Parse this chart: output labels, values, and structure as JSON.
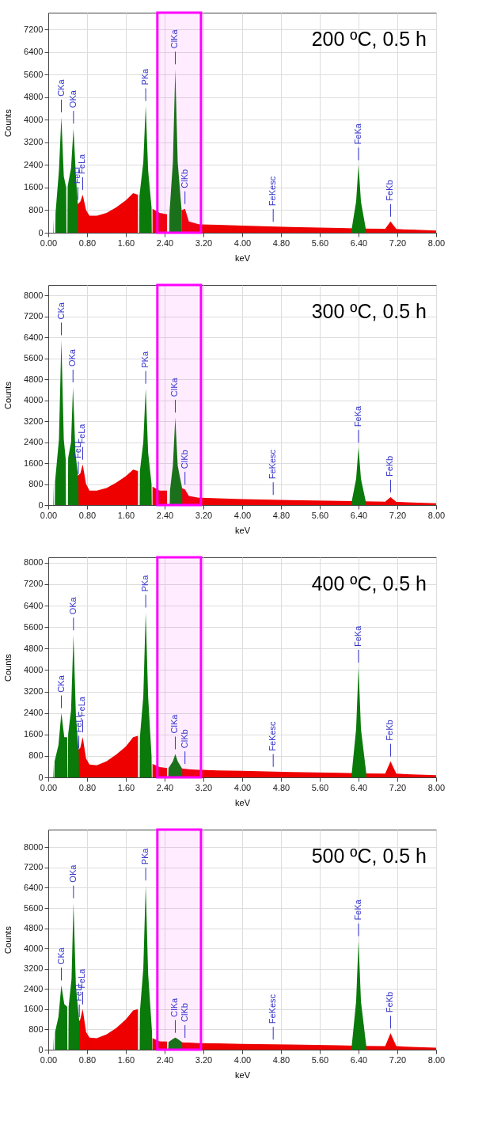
{
  "chart_data": [
    {
      "type": "area",
      "title": "200 ºC, 0.5 h",
      "xlabel": "keV",
      "ylabel": "Counts",
      "grid": true,
      "xlim": [
        0,
        8
      ],
      "xticks": [
        {
          "value": 0,
          "label": "0.00"
        },
        {
          "value": 0.8,
          "label": "0.80"
        },
        {
          "value": 1.6,
          "label": "1.60"
        },
        {
          "value": 2.4,
          "label": "2.40"
        },
        {
          "value": 3.2,
          "label": "3.20"
        },
        {
          "value": 4,
          "label": "4.00"
        },
        {
          "value": 4.8,
          "label": "4.80"
        },
        {
          "value": 5.6,
          "label": "5.60"
        },
        {
          "value": 6.4,
          "label": "6.40"
        },
        {
          "value": 7.2,
          "label": "7.20"
        },
        {
          "value": 8,
          "label": "8.00"
        }
      ],
      "ylim": [
        0,
        7800
      ],
      "yticks": [
        0,
        800,
        1600,
        2400,
        3200,
        4000,
        4800,
        5600,
        6400,
        7200
      ],
      "series": [
        {
          "color": "#ee0000",
          "x": [
            0.1,
            0.11,
            0.2,
            0.3,
            0.385,
            0.45,
            0.6,
            0.66,
            0.71,
            0.78,
            0.85,
            1.0,
            1.2,
            1.4,
            1.6,
            1.75,
            1.85,
            2.0,
            2.15,
            2.3,
            2.45,
            2.55,
            2.75,
            2.82,
            2.9,
            3.1,
            3.5,
            4.0,
            5.0,
            6.0,
            6.5,
            6.95,
            7.06,
            7.18,
            7.5,
            8.0
          ],
          "values": [
            0,
            500,
            null,
            null,
            null,
            null,
            1000,
            1100,
            1350,
            800,
            600,
            600,
            700,
            900,
            1150,
            1400,
            1350,
            null,
            850,
            700,
            650,
            null,
            800,
            850,
            400,
            300,
            280,
            250,
            200,
            170,
            150,
            140,
            400,
            130,
            110,
            80
          ]
        },
        {
          "color": "#0a7a0a",
          "x": [
            0.145,
            0.15,
            0.22,
            0.27,
            0.32,
            0.37,
            0.375,
            0.395,
            0.4,
            0.47,
            0.52,
            0.57,
            0.61,
            0.615,
            1.875,
            1.88,
            1.96,
            2.01,
            2.06,
            2.13,
            2.135,
            2.495,
            2.5,
            2.57,
            2.62,
            2.67,
            2.75,
            2.755,
            6.255,
            6.26,
            6.35,
            6.4,
            6.45,
            6.55,
            6.555
          ],
          "values": [
            0,
            700,
            2200,
            4100,
            2000,
            1600,
            0,
            0,
            1650,
            2300,
            3700,
            2000,
            1000,
            0,
            0,
            1300,
            2500,
            4500,
            2200,
            900,
            0,
            0,
            700,
            2500,
            5800,
            2500,
            800,
            0,
            0,
            150,
            1100,
            2400,
            1100,
            130,
            0
          ]
        }
      ],
      "bands": [
        {
          "axis": "x",
          "from": 2.25,
          "to": 3.15,
          "color": "#ff00ff"
        }
      ],
      "annotations": [
        {
          "text": "CKa",
          "x": 0.27,
          "y": 4100
        },
        {
          "text": "OKa",
          "x": 0.52,
          "y": 3700
        },
        {
          "text": "FeLl",
          "x": 0.61,
          "y": 1000
        },
        {
          "text": "FeLa",
          "x": 0.71,
          "y": 1350
        },
        {
          "text": "PKa",
          "x": 2.01,
          "y": 4500
        },
        {
          "text": "ClKa",
          "x": 2.62,
          "y": 5800
        },
        {
          "text": "ClKb",
          "x": 2.82,
          "y": 850
        },
        {
          "text": "FeKesc",
          "x": 4.64,
          "y": 220
        },
        {
          "text": "FeKa",
          "x": 6.4,
          "y": 2400
        },
        {
          "text": "FeKb",
          "x": 7.06,
          "y": 400
        }
      ]
    },
    {
      "type": "area",
      "title": "300 ºC, 0.5 h",
      "xlabel": "keV",
      "ylabel": "Counts",
      "grid": true,
      "xlim": [
        0,
        8
      ],
      "xticks": [
        {
          "value": 0,
          "label": "0.00"
        },
        {
          "value": 0.8,
          "label": "0.80"
        },
        {
          "value": 1.6,
          "label": "1.60"
        },
        {
          "value": 2.4,
          "label": "2.40"
        },
        {
          "value": 3.2,
          "label": "3.20"
        },
        {
          "value": 4,
          "label": "4.00"
        },
        {
          "value": 4.8,
          "label": "4.80"
        },
        {
          "value": 5.6,
          "label": "5.60"
        },
        {
          "value": 6.4,
          "label": "6.40"
        },
        {
          "value": 7.2,
          "label": "7.20"
        },
        {
          "value": 8,
          "label": "8.00"
        }
      ],
      "ylim": [
        0,
        8400
      ],
      "yticks": [
        0,
        800,
        1600,
        2400,
        3200,
        4000,
        4800,
        5600,
        6400,
        7200,
        8000
      ],
      "series": [
        {
          "color": "#ee0000",
          "x": [
            0.1,
            0.11,
            0.2,
            0.3,
            0.385,
            0.45,
            0.6,
            0.66,
            0.71,
            0.78,
            0.85,
            1.0,
            1.2,
            1.4,
            1.6,
            1.75,
            1.85,
            2.0,
            2.15,
            2.3,
            2.45,
            2.55,
            2.75,
            2.82,
            2.9,
            3.1,
            3.5,
            4.0,
            5.0,
            6.0,
            6.5,
            6.95,
            7.06,
            7.18,
            7.5,
            8.0
          ],
          "values": [
            0,
            800,
            null,
            null,
            null,
            null,
            1100,
            1200,
            1550,
            800,
            550,
            550,
            650,
            850,
            1100,
            1350,
            1300,
            null,
            700,
            550,
            550,
            null,
            650,
            600,
            350,
            280,
            260,
            230,
            190,
            160,
            140,
            130,
            300,
            120,
            100,
            70
          ]
        },
        {
          "color": "#0a7a0a",
          "x": [
            0.135,
            0.14,
            0.22,
            0.27,
            0.32,
            0.36,
            0.365,
            0.405,
            0.41,
            0.47,
            0.51,
            0.56,
            0.62,
            0.625,
            1.885,
            1.89,
            1.96,
            2.01,
            2.06,
            2.13,
            2.135,
            2.505,
            2.51,
            2.57,
            2.62,
            2.67,
            2.76,
            2.765,
            6.255,
            6.26,
            6.35,
            6.4,
            6.45,
            6.55,
            6.555
          ],
          "values": [
            0,
            900,
            2500,
            6300,
            2500,
            1750,
            0,
            0,
            1800,
            2400,
            4500,
            2000,
            1000,
            0,
            0,
            1300,
            2400,
            4450,
            2000,
            800,
            0,
            0,
            550,
            1500,
            3350,
            1500,
            650,
            0,
            0,
            140,
            1000,
            2200,
            1000,
            130,
            0
          ]
        }
      ],
      "bands": [
        {
          "axis": "x",
          "from": 2.25,
          "to": 3.15,
          "color": "#ff00ff"
        }
      ],
      "annotations": [
        {
          "text": "CKa",
          "x": 0.27,
          "y": 6300
        },
        {
          "text": "OKa",
          "x": 0.51,
          "y": 4500
        },
        {
          "text": "FeLl",
          "x": 0.62,
          "y": 1000
        },
        {
          "text": "FeLa",
          "x": 0.71,
          "y": 1550
        },
        {
          "text": "PKa",
          "x": 2.01,
          "y": 4450
        },
        {
          "text": "ClKa",
          "x": 2.62,
          "y": 3350
        },
        {
          "text": "ClKb",
          "x": 2.82,
          "y": 600
        },
        {
          "text": "FeKesc",
          "x": 4.64,
          "y": 204
        },
        {
          "text": "FeKa",
          "x": 6.4,
          "y": 2200
        },
        {
          "text": "FeKb",
          "x": 7.06,
          "y": 300
        }
      ]
    },
    {
      "type": "area",
      "title": "400 ºC, 0.5 h",
      "xlabel": "keV",
      "ylabel": "Counts",
      "grid": true,
      "xlim": [
        0,
        8
      ],
      "xticks": [
        {
          "value": 0,
          "label": "0.00"
        },
        {
          "value": 0.8,
          "label": "0.80"
        },
        {
          "value": 1.6,
          "label": "1.60"
        },
        {
          "value": 2.4,
          "label": "2.40"
        },
        {
          "value": 3.2,
          "label": "3.20"
        },
        {
          "value": 4,
          "label": "4.00"
        },
        {
          "value": 4.8,
          "label": "4.80"
        },
        {
          "value": 5.6,
          "label": "5.60"
        },
        {
          "value": 6.4,
          "label": "6.40"
        },
        {
          "value": 7.2,
          "label": "7.20"
        },
        {
          "value": 8,
          "label": "8.00"
        }
      ],
      "ylim": [
        0,
        8200
      ],
      "yticks": [
        0,
        800,
        1600,
        2400,
        3200,
        4000,
        4800,
        5600,
        6400,
        7200,
        8000
      ],
      "series": [
        {
          "color": "#ee0000",
          "x": [
            0.1,
            0.11,
            0.2,
            0.3,
            0.4,
            0.45,
            0.6,
            0.66,
            0.71,
            0.78,
            0.85,
            1.0,
            1.2,
            1.4,
            1.6,
            1.75,
            1.85,
            2.0,
            2.15,
            2.3,
            2.45,
            2.55,
            2.75,
            2.82,
            2.9,
            3.1,
            3.5,
            4.0,
            5.0,
            6.0,
            6.5,
            6.95,
            7.06,
            7.18,
            7.5,
            8.0
          ],
          "values": [
            0,
            500,
            null,
            null,
            null,
            null,
            1000,
            1100,
            1500,
            700,
            480,
            450,
            600,
            850,
            1150,
            1500,
            1550,
            null,
            500,
            380,
            350,
            null,
            330,
            320,
            300,
            280,
            260,
            240,
            200,
            170,
            150,
            140,
            600,
            140,
            110,
            80
          ]
        },
        {
          "color": "#0a7a0a",
          "x": [
            0.125,
            0.13,
            0.21,
            0.27,
            0.33,
            0.39,
            0.395,
            0.405,
            0.41,
            0.47,
            0.52,
            0.57,
            0.63,
            0.635,
            1.885,
            1.89,
            1.96,
            2.01,
            2.06,
            2.13,
            2.135,
            2.475,
            2.48,
            2.57,
            2.62,
            2.67,
            2.76,
            2.765,
            6.255,
            6.26,
            6.35,
            6.4,
            6.45,
            6.56,
            6.565
          ],
          "values": [
            0,
            600,
            1200,
            2400,
            1500,
            1500,
            0,
            0,
            1600,
            2500,
            5300,
            2300,
            900,
            0,
            0,
            1500,
            3000,
            6150,
            3000,
            800,
            0,
            0,
            350,
            600,
            870,
            600,
            330,
            0,
            0,
            150,
            1800,
            4100,
            1800,
            140,
            0
          ]
        }
      ],
      "bands": [
        {
          "axis": "x",
          "from": 2.25,
          "to": 3.15,
          "color": "#ff00ff"
        }
      ],
      "annotations": [
        {
          "text": "CKa",
          "x": 0.27,
          "y": 2400
        },
        {
          "text": "OKa",
          "x": 0.52,
          "y": 5300
        },
        {
          "text": "FeLl",
          "x": 0.63,
          "y": 900
        },
        {
          "text": "FeLa",
          "x": 0.71,
          "y": 1500
        },
        {
          "text": "PKa",
          "x": 2.01,
          "y": 6150
        },
        {
          "text": "ClKa",
          "x": 2.62,
          "y": 870
        },
        {
          "text": "ClKb",
          "x": 2.82,
          "y": 320
        },
        {
          "text": "FeKesc",
          "x": 4.64,
          "y": 214
        },
        {
          "text": "FeKa",
          "x": 6.4,
          "y": 4100
        },
        {
          "text": "FeKb",
          "x": 7.06,
          "y": 600
        }
      ]
    },
    {
      "type": "area",
      "title": "500 ºC, 0.5 h",
      "xlabel": "keV",
      "ylabel": "Counts",
      "grid": true,
      "xlim": [
        0,
        8
      ],
      "xticks": [
        {
          "value": 0,
          "label": "0.00"
        },
        {
          "value": 0.8,
          "label": "0.80"
        },
        {
          "value": 1.6,
          "label": "1.60"
        },
        {
          "value": 2.4,
          "label": "2.40"
        },
        {
          "value": 3.2,
          "label": "3.20"
        },
        {
          "value": 4,
          "label": "4.00"
        },
        {
          "value": 4.8,
          "label": "4.80"
        },
        {
          "value": 5.6,
          "label": "5.60"
        },
        {
          "value": 6.4,
          "label": "6.40"
        },
        {
          "value": 7.2,
          "label": "7.20"
        },
        {
          "value": 8,
          "label": "8.00"
        }
      ],
      "ylim": [
        0,
        8700
      ],
      "yticks": [
        0,
        800,
        1600,
        2400,
        3200,
        4000,
        4800,
        5600,
        6400,
        7200,
        8000
      ],
      "series": [
        {
          "color": "#ee0000",
          "x": [
            0.1,
            0.11,
            0.2,
            0.3,
            0.405,
            0.45,
            0.6,
            0.66,
            0.71,
            0.78,
            0.85,
            1.0,
            1.2,
            1.4,
            1.6,
            1.75,
            1.85,
            2.0,
            2.15,
            2.3,
            2.45,
            2.55,
            2.75,
            2.82,
            2.9,
            3.1,
            3.5,
            4.0,
            5.0,
            6.0,
            6.5,
            6.95,
            7.06,
            7.18,
            7.5,
            8.0
          ],
          "values": [
            0,
            500,
            null,
            null,
            null,
            null,
            1000,
            1200,
            1600,
            700,
            480,
            450,
            600,
            850,
            1200,
            1550,
            1600,
            null,
            450,
            330,
            320,
            null,
            290,
            280,
            280,
            260,
            250,
            230,
            200,
            170,
            150,
            140,
            650,
            140,
            110,
            80
          ]
        },
        {
          "color": "#0a7a0a",
          "x": [
            0.135,
            0.14,
            0.21,
            0.27,
            0.33,
            0.39,
            0.395,
            0.415,
            0.42,
            0.48,
            0.52,
            0.57,
            0.64,
            0.645,
            1.885,
            1.89,
            1.96,
            2.01,
            2.06,
            2.14,
            2.145,
            2.475,
            2.48,
            2.57,
            2.62,
            2.67,
            2.76,
            2.765,
            6.255,
            6.26,
            6.35,
            6.4,
            6.45,
            6.56,
            6.565
          ],
          "values": [
            0,
            700,
            1300,
            2550,
            1800,
            1700,
            0,
            0,
            1700,
            2800,
            5800,
            2500,
            1100,
            0,
            0,
            1500,
            3200,
            6500,
            3000,
            700,
            0,
            0,
            300,
            420,
            480,
            420,
            300,
            0,
            0,
            150,
            1900,
            4300,
            1900,
            140,
            0
          ]
        }
      ],
      "bands": [
        {
          "axis": "x",
          "from": 2.25,
          "to": 3.15,
          "color": "#ff00ff"
        }
      ],
      "annotations": [
        {
          "text": "CKa",
          "x": 0.27,
          "y": 2550
        },
        {
          "text": "OKa",
          "x": 0.52,
          "y": 5800
        },
        {
          "text": "FeLl",
          "x": 0.64,
          "y": 1100
        },
        {
          "text": "FeLa",
          "x": 0.71,
          "y": 1600
        },
        {
          "text": "PKa",
          "x": 2.01,
          "y": 6500
        },
        {
          "text": "ClKa",
          "x": 2.62,
          "y": 480
        },
        {
          "text": "ClKb",
          "x": 2.82,
          "y": 280
        },
        {
          "text": "FeKesc",
          "x": 4.64,
          "y": 211
        },
        {
          "text": "FeKa",
          "x": 6.4,
          "y": 4300
        },
        {
          "text": "FeKb",
          "x": 7.06,
          "y": 650
        }
      ]
    }
  ]
}
